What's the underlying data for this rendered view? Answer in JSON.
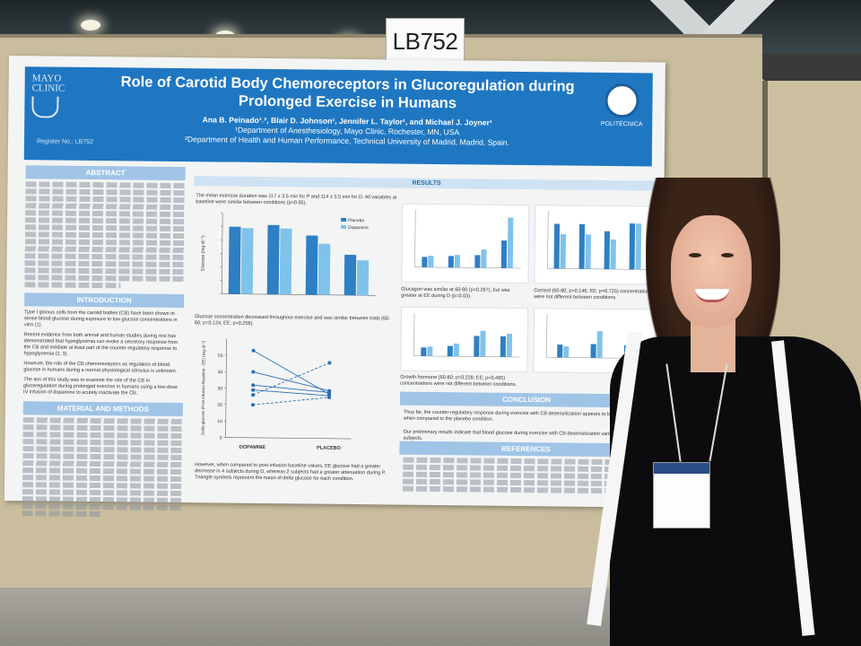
{
  "booth_card": "LB752",
  "poster": {
    "title_line1": "Role of Carotid Body Chemoreceptors in Glucoregulation during",
    "title_line2": "Prolonged Exercise in Humans",
    "authors": "Ana B. Peinado¹˒², Blair D. Johnson¹, Jennifer L. Taylor¹, and Michael J. Joyner¹",
    "affiliation1": "¹Department of Anesthesiology, Mayo Clinic, Rochester, MN, USA",
    "affiliation2": "²Department of Health and Human Performance, Technical University of Madrid, Madrid, Spain.",
    "logo_left": "MAYO CLINIC",
    "logo_right": "POLITÉCNICA",
    "poster_number": "Register No.: LB752",
    "sections": {
      "abstract": "ABSTRACT",
      "introduction": "INTRODUCTION",
      "material_methods": "MATERIAL AND METHODS",
      "results": "RESULTS",
      "conclusion": "CONCLUSION",
      "references": "REFERENCES"
    },
    "results_note": "The mean exercise duration was 117 ± 3.5 min for P and 114 ± 3.5 min for D. All variables at baseline were similar between conditions (p>0.05).",
    "caption_glucose": "Glucose concentration decreased throughout exercise and was similar between trials (60-60; p=0.124; EE; p=0.256).",
    "caption_glucagon": "Glucagon was similar at 60-80 (p=0.267), but was greater at EE during D (p=0.03).",
    "caption_cortisol": "Cortisol (60-80; p=0.146; EE; p=0.725) concentrations were not different between conditions.",
    "caption_growth": "Growth hormone (60-80; p=0.228; EE; p=0.465) concentrations were not different between conditions.",
    "caption_delta": "However, when compared to post-infusion baseline values, EE glucose had a greater decrease in 4 subjects during D, whereas 2 subjects had a greater attenuation during P. Triangle symbols represent the mean of delta glucose for each condition.",
    "intro_bullets": [
      "Type I glomus cells from the carotid bodies (CB) have been shown to sense blood glucose during exposure to low glucose concentrations in vitro (1).",
      "Recent evidence from both animal and human studies during rest has demonstrated that hypoglycemia can evoke a secretory response from the CB and mediate at least part of the counter-regulatory response to hypoglycemia (2, 3).",
      "However, the role of the CB chemoreceptors as regulators of blood glucose in humans during a normal physiological stimulus is unknown.",
      "The aim of this study was to examine the role of the CB in glucoregulation during prolonged exercise in humans using a low-dose IV infusion of dopamine to acutely inactivate the CB."
    ],
    "conclusion_bullets": [
      "Thus far, the counter-regulatory response during exercise with CB desensitization appears to be augmented when compared to the placebo condition.",
      "Our preliminary results indicate that blood glucose during exercise with CB desensitization varies between subjects."
    ]
  },
  "chart_data": [
    {
      "type": "bar",
      "ylabel": "Glucose (mg·dl⁻¹)",
      "series": [
        {
          "name": "Placebo",
          "values": [
            100,
            103,
            88,
            60
          ]
        },
        {
          "name": "Dopamine",
          "values": [
            98,
            98,
            76,
            52
          ]
        }
      ],
      "ylim": [
        0,
        120
      ]
    },
    {
      "type": "line",
      "xlabel": "",
      "ylabel": "Delta glucose (Post infusion Baseline - EE) (mg·dl⁻¹)",
      "categories": [
        "DOPAMINE",
        "PLACEBO"
      ],
      "series": [
        {
          "values": [
            53,
            27
          ]
        },
        {
          "values": [
            40,
            29
          ]
        },
        {
          "values": [
            32,
            28
          ]
        },
        {
          "values": [
            29,
            26
          ]
        },
        {
          "values": [
            26,
            46
          ]
        },
        {
          "values": [
            20,
            25
          ]
        }
      ],
      "ylim": [
        0,
        60
      ],
      "yticks": [
        0,
        10,
        20,
        30,
        40,
        50
      ]
    }
  ],
  "colors": {
    "banner": "#1f77c2",
    "placebo_bar": "#2e7fc4",
    "dopamine_bar": "#7fc3ea",
    "section_head": "#9fc4e6"
  }
}
